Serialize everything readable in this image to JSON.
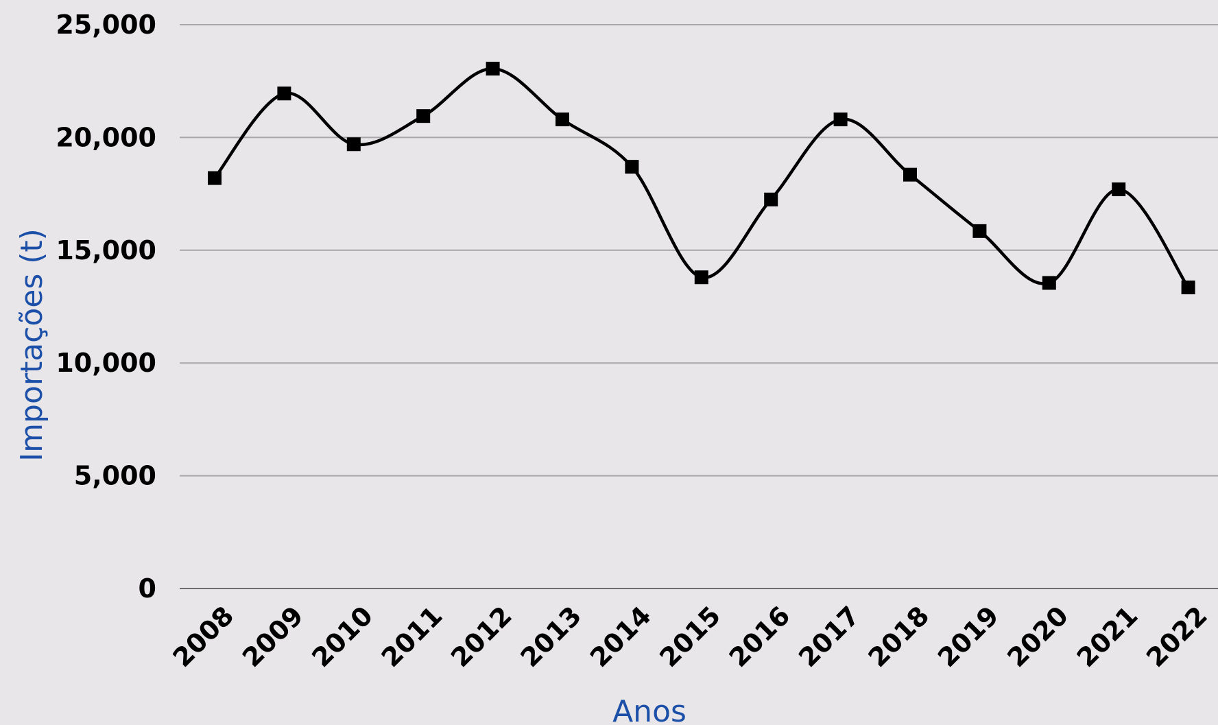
{
  "chart_data": {
    "type": "line",
    "x": [
      "2008",
      "2009",
      "2010",
      "2011",
      "2012",
      "2013",
      "2014",
      "2015",
      "2016",
      "2017",
      "2018",
      "2019",
      "2020",
      "2021",
      "2022"
    ],
    "series": [
      {
        "values": [
          18200,
          21950,
          19700,
          20950,
          23050,
          20800,
          18700,
          13800,
          17250,
          20800,
          18350,
          15850,
          13550,
          17700,
          13350
        ]
      }
    ],
    "xlabel": "Anos",
    "ylabel": "Importações (t)",
    "ylim": [
      0,
      25000
    ],
    "yticks": [
      "0",
      "5,000",
      "10,000",
      "15,000",
      "20,000",
      "25,000"
    ],
    "grid": true,
    "line_style": "smooth",
    "marker": "square",
    "colors": {
      "line": "#000000",
      "axis_title": "#1b4fa8",
      "background": "#e8e6e9",
      "grid": "#a8a6a9"
    }
  }
}
